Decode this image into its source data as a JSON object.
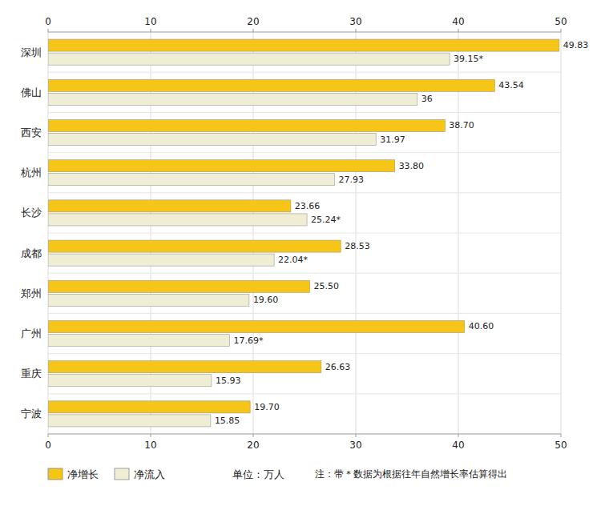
{
  "chart_data": {
    "type": "bar",
    "orientation": "horizontal",
    "categories": [
      "深圳",
      "佛山",
      "西安",
      "杭州",
      "长沙",
      "成都",
      "郑州",
      "广州",
      "重庆",
      "宁波"
    ],
    "series": [
      {
        "name": "净增长",
        "color": "#F5C518",
        "values": [
          49.83,
          43.54,
          38.7,
          33.8,
          23.66,
          28.53,
          25.5,
          40.6,
          26.63,
          19.7
        ],
        "value_labels": [
          "49.83",
          "43.54",
          "38.70",
          "33.80",
          "23.66",
          "28.53",
          "25.50",
          "40.60",
          "26.63",
          "19.70"
        ]
      },
      {
        "name": "净流入",
        "color": "#F0EDD5",
        "values": [
          39.15,
          36.0,
          31.97,
          27.93,
          25.24,
          22.04,
          19.6,
          17.69,
          15.93,
          15.85
        ],
        "value_labels": [
          "39.15*",
          "36",
          "31.97",
          "27.93",
          "25.24*",
          "22.04*",
          "19.60",
          "17.69*",
          "15.93",
          "15.85"
        ]
      }
    ],
    "xlim": [
      0,
      50
    ],
    "xticks": [
      0,
      10,
      20,
      30,
      40,
      50
    ],
    "grid": true,
    "data_labels": true,
    "legend": "lower left",
    "annotations": [
      "单位：万人",
      "注：带＊数据为根据往年自然增长率估算得出"
    ]
  }
}
